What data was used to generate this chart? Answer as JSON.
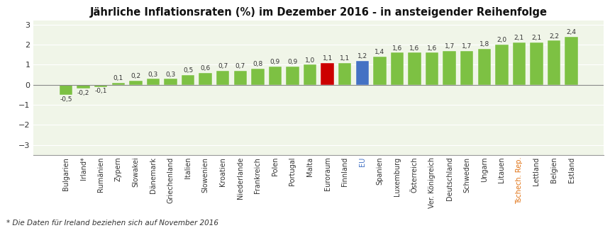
{
  "title": "Jährliche Inflationsraten (%) im Dezember 2016 - in ansteigender Reihenfolge",
  "footnote": "* Die Daten für Ireland beziehen sich auf November 2016",
  "categories": [
    "Bulgarien",
    "Irland*",
    "Rumänien",
    "Zypern",
    "Slowakei",
    "Dänemark",
    "Griechenland",
    "Italien",
    "Slowenien",
    "Kroatien",
    "Niederlande",
    "Frankreich",
    "Polen",
    "Portugal",
    "Malta",
    "Euroraum",
    "Finnland",
    "EU",
    "Spanien",
    "Luxemburg",
    "Österreich",
    "Ver. Königreich",
    "Deutschland",
    "Schweden",
    "Ungarn",
    "Litauen",
    "Tschech. Rep.",
    "Lettland",
    "Belgien",
    "Estland"
  ],
  "values": [
    -0.5,
    -0.2,
    -0.1,
    0.1,
    0.2,
    0.3,
    0.3,
    0.5,
    0.6,
    0.7,
    0.7,
    0.8,
    0.9,
    0.9,
    1.0,
    1.1,
    1.1,
    1.2,
    1.4,
    1.6,
    1.6,
    1.6,
    1.7,
    1.7,
    1.8,
    2.0,
    2.1,
    2.1,
    2.2,
    2.4
  ],
  "bar_colors": [
    "#7dc143",
    "#7dc143",
    "#7dc143",
    "#7dc143",
    "#7dc143",
    "#7dc143",
    "#7dc143",
    "#7dc143",
    "#7dc143",
    "#7dc143",
    "#7dc143",
    "#7dc143",
    "#7dc143",
    "#7dc143",
    "#7dc143",
    "#cc0000",
    "#7dc143",
    "#4472c4",
    "#7dc143",
    "#7dc143",
    "#7dc143",
    "#7dc143",
    "#7dc143",
    "#7dc143",
    "#7dc143",
    "#7dc143",
    "#7dc143",
    "#7dc143",
    "#7dc143",
    "#7dc143"
  ],
  "special_label_colors": {
    "Tschech. Rep.": "#e07010",
    "EU": "#4472c4"
  },
  "ylim": [
    -3.5,
    3.2
  ],
  "yticks": [
    -3,
    -2,
    -1,
    0,
    1,
    2,
    3
  ],
  "background_color": "#ffffff",
  "plot_bg_color": "#f0f5e8",
  "grid_color": "#ffffff",
  "title_fontsize": 10.5,
  "xlabel_fontsize": 7,
  "value_fontsize": 6.5,
  "footnote_fontsize": 7.5,
  "ytick_fontsize": 8
}
